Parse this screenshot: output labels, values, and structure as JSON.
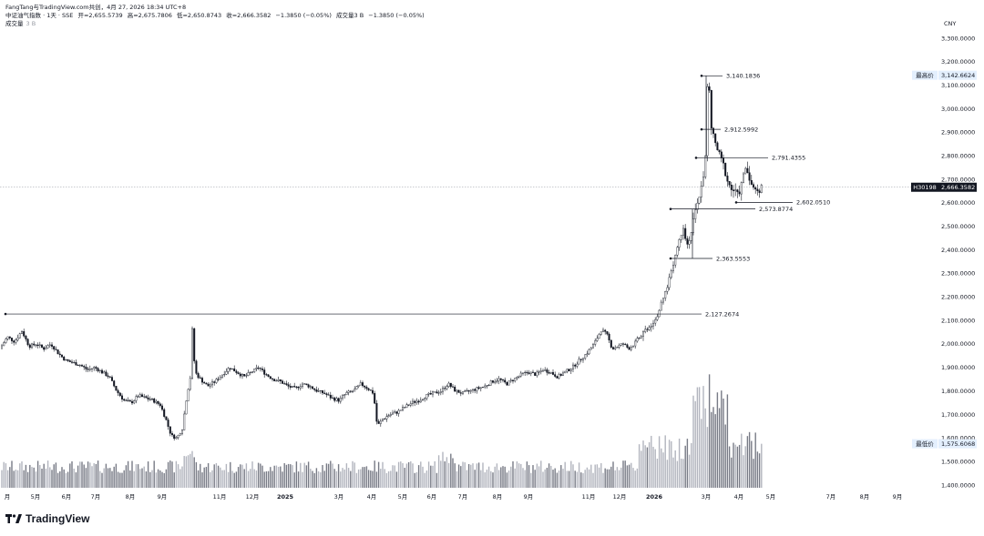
{
  "header": {
    "publisher": "FangTang与TradingView.com共创，4月 27, 2026 18:34 UTC+8",
    "symbol": "中证油气指数 · 1天 · SSE",
    "ohlc": {
      "open": "开=2,655.5739",
      "high": "高=2,675.7806",
      "low": "低=2,650.8743",
      "close": "收=2,666.3582",
      "change": "−1.3850 (−0.05%)",
      "volume": "成交量3 B",
      "volume_change": "−1.3850 (−0.05%)"
    },
    "volume_label": "成交量",
    "volume_value": "3 B"
  },
  "currency": "CNY",
  "branding": {
    "logo_text": "TradingView",
    "logo_icon": "tradingview-logo-icon"
  },
  "chart_data": {
    "type": "candlestick",
    "y_axis": {
      "ticks": [
        "3,300.0000",
        "3,200.0000",
        "3,100.0000",
        "3,000.0000",
        "2,900.0000",
        "2,800.0000",
        "2,700.0000",
        "2,600.0000",
        "2,500.0000",
        "2,400.0000",
        "2,300.0000",
        "2,200.0000",
        "2,100.0000",
        "2,000.0000",
        "1,900.0000",
        "1,800.0000",
        "1,700.0000",
        "1,600.0000",
        "1,500.0000",
        "1,400.0000"
      ],
      "range": [
        1400,
        3300
      ]
    },
    "x_axis": {
      "labels": [
        "月",
        "5月",
        "6月",
        "7月",
        "8月",
        "9月",
        "11月",
        "12月",
        "2025",
        "3月",
        "4月",
        "5月",
        "6月",
        "7月",
        "8月",
        "9月",
        "11月",
        "12月",
        "2026",
        "3月",
        "4月",
        "5月",
        "7月",
        "8月",
        "9月"
      ],
      "bold_labels": [
        "2025",
        "2026"
      ]
    },
    "badges": [
      {
        "label": "最高价",
        "value": "3,142.6624",
        "price": 3142.6624
      },
      {
        "label": "H30198",
        "value": "2,666.3582",
        "price": 2666.3582
      },
      {
        "label": "最低价",
        "value": "1,575.6068",
        "price": 1575.6068
      }
    ],
    "levels": [
      {
        "label": "3,140.1836",
        "price": 3140.1836
      },
      {
        "label": "2,912.5992",
        "price": 2912.5992
      },
      {
        "label": "2,791.4355",
        "price": 2791.4355
      },
      {
        "label": "2,602.0510",
        "price": 2602.051
      },
      {
        "label": "2,573.8774",
        "price": 2573.8774
      },
      {
        "label": "2,363.5553",
        "price": 2363.5553
      },
      {
        "label": "2,127.2674",
        "price": 2127.2674
      }
    ],
    "price_path": [
      [
        0,
        1980
      ],
      [
        8,
        2030
      ],
      [
        16,
        2010
      ],
      [
        24,
        2055
      ],
      [
        32,
        1990
      ],
      [
        40,
        2000
      ],
      [
        48,
        1980
      ],
      [
        56,
        2000
      ],
      [
        64,
        1960
      ],
      [
        72,
        1930
      ],
      [
        80,
        1920
      ],
      [
        88,
        1910
      ],
      [
        96,
        1890
      ],
      [
        104,
        1900
      ],
      [
        112,
        1880
      ],
      [
        120,
        1860
      ],
      [
        128,
        1800
      ],
      [
        136,
        1760
      ],
      [
        144,
        1750
      ],
      [
        152,
        1780
      ],
      [
        160,
        1770
      ],
      [
        168,
        1760
      ],
      [
        176,
        1740
      ],
      [
        182,
        1680
      ],
      [
        188,
        1610
      ],
      [
        194,
        1600
      ],
      [
        200,
        1640
      ],
      [
        205,
        1780
      ],
      [
        209,
        1860
      ],
      [
        211,
        2060
      ],
      [
        214,
        1880
      ],
      [
        220,
        1850
      ],
      [
        228,
        1820
      ],
      [
        236,
        1840
      ],
      [
        244,
        1870
      ],
      [
        252,
        1900
      ],
      [
        260,
        1880
      ],
      [
        268,
        1860
      ],
      [
        276,
        1880
      ],
      [
        284,
        1900
      ],
      [
        292,
        1870
      ],
      [
        300,
        1850
      ],
      [
        308,
        1840
      ],
      [
        316,
        1820
      ],
      [
        324,
        1810
      ],
      [
        332,
        1830
      ],
      [
        340,
        1820
      ],
      [
        348,
        1800
      ],
      [
        356,
        1790
      ],
      [
        364,
        1770
      ],
      [
        372,
        1760
      ],
      [
        380,
        1790
      ],
      [
        388,
        1800
      ],
      [
        396,
        1830
      ],
      [
        404,
        1810
      ],
      [
        410,
        1790
      ],
      [
        414,
        1650
      ],
      [
        420,
        1680
      ],
      [
        428,
        1700
      ],
      [
        436,
        1710
      ],
      [
        444,
        1730
      ],
      [
        452,
        1750
      ],
      [
        460,
        1760
      ],
      [
        468,
        1780
      ],
      [
        476,
        1790
      ],
      [
        484,
        1800
      ],
      [
        492,
        1830
      ],
      [
        500,
        1800
      ],
      [
        508,
        1790
      ],
      [
        516,
        1800
      ],
      [
        524,
        1810
      ],
      [
        532,
        1820
      ],
      [
        540,
        1840
      ],
      [
        548,
        1850
      ],
      [
        556,
        1830
      ],
      [
        564,
        1850
      ],
      [
        572,
        1870
      ],
      [
        580,
        1880
      ],
      [
        588,
        1870
      ],
      [
        596,
        1890
      ],
      [
        604,
        1880
      ],
      [
        612,
        1860
      ],
      [
        620,
        1880
      ],
      [
        628,
        1900
      ],
      [
        636,
        1930
      ],
      [
        644,
        1960
      ],
      [
        652,
        2000
      ],
      [
        660,
        2060
      ],
      [
        666,
        2040
      ],
      [
        672,
        1980
      ],
      [
        678,
        1990
      ],
      [
        684,
        2000
      ],
      [
        690,
        1980
      ],
      [
        696,
        2000
      ],
      [
        702,
        2030
      ],
      [
        708,
        2060
      ],
      [
        714,
        2080
      ],
      [
        720,
        2110
      ],
      [
        726,
        2170
      ],
      [
        732,
        2240
      ],
      [
        738,
        2330
      ],
      [
        744,
        2420
      ],
      [
        750,
        2500
      ],
      [
        754,
        2420
      ],
      [
        758,
        2460
      ],
      [
        762,
        2540
      ],
      [
        766,
        2600
      ],
      [
        770,
        2680
      ],
      [
        774,
        2760
      ],
      [
        776,
        3080
      ],
      [
        778,
        3130
      ],
      [
        780,
        2930
      ],
      [
        782,
        2900
      ],
      [
        786,
        2840
      ],
      [
        790,
        2800
      ],
      [
        794,
        2760
      ],
      [
        798,
        2700
      ],
      [
        802,
        2660
      ],
      [
        806,
        2650
      ],
      [
        810,
        2630
      ],
      [
        814,
        2680
      ],
      [
        818,
        2750
      ],
      [
        822,
        2720
      ],
      [
        826,
        2660
      ],
      [
        830,
        2650
      ],
      [
        834,
        2660
      ],
      [
        838,
        2666
      ]
    ]
  }
}
